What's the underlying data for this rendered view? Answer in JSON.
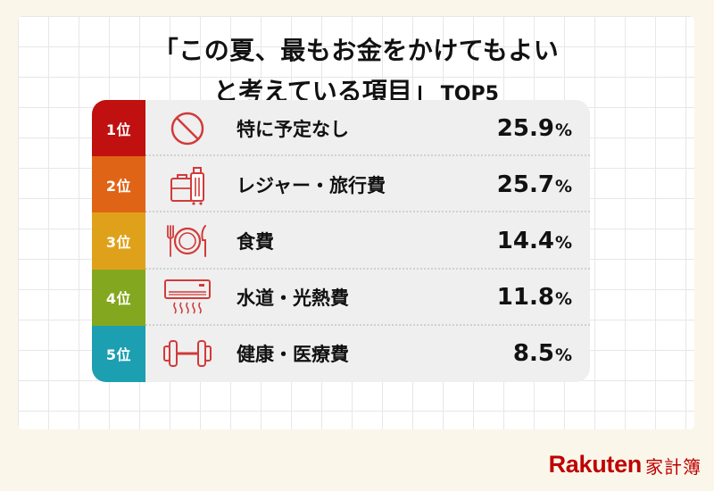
{
  "title": {
    "line1": "「この夏、最もお金をかけてもよい",
    "line2": "と考えている項目」",
    "suffix": "TOP5"
  },
  "chart_data": {
    "type": "table",
    "title": "「この夏、最もお金をかけてもよいと考えている項目」TOP5",
    "columns": [
      "rank",
      "item",
      "value"
    ],
    "rows": [
      {
        "rank": "1位",
        "item": "特に予定なし",
        "value": "25.9",
        "unit": "%",
        "color": "#c01010",
        "icon": "prohibited-icon"
      },
      {
        "rank": "2位",
        "item": "レジャー・旅行費",
        "value": "25.7",
        "unit": "%",
        "color": "#e06415",
        "icon": "luggage-icon"
      },
      {
        "rank": "3位",
        "item": "食費",
        "value": "14.4",
        "unit": "%",
        "color": "#e0a11a",
        "icon": "plate-cutlery-icon"
      },
      {
        "rank": "4位",
        "item": "水道・光熱費",
        "value": "11.8",
        "unit": "%",
        "color": "#83a81f",
        "icon": "air-conditioner-icon"
      },
      {
        "rank": "5位",
        "item": "健康・医療費",
        "value": "8.5",
        "unit": "%",
        "color": "#1c9fb0",
        "icon": "dumbbell-icon"
      }
    ],
    "values": [
      25.9,
      25.7,
      14.4,
      11.8,
      8.5
    ],
    "categories": [
      "特に予定なし",
      "レジャー・旅行費",
      "食費",
      "水道・光熱費",
      "健康・医療費"
    ]
  },
  "logo": {
    "brand": "Rakuten",
    "product": "家計簿"
  },
  "colors": {
    "accent": "#bf0000",
    "icon_stroke": "#d23a3a"
  }
}
